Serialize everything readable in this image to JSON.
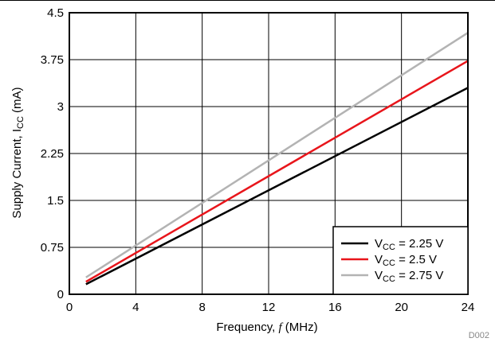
{
  "chart_data": {
    "type": "line",
    "title": "",
    "xlabel": {
      "prefix": "Frequency, ",
      "symbol": "f",
      "suffix": " (MHz)"
    },
    "ylabel": {
      "prefix": "Supply Current, I",
      "sub": "CC",
      "suffix": " (mA)"
    },
    "xlim": [
      0,
      24
    ],
    "ylim": [
      0,
      4.5
    ],
    "x_ticks": [
      0,
      4,
      8,
      12,
      16,
      20,
      24
    ],
    "x_tick_labels": [
      "0",
      "4",
      "8",
      "12",
      "16",
      "20",
      "24"
    ],
    "y_ticks": [
      0,
      0.75,
      1.5,
      2.25,
      3,
      3.75,
      4.5
    ],
    "y_tick_labels": [
      "0",
      "0.75",
      "1.5",
      "2.25",
      "3",
      "3.75",
      "4.5"
    ],
    "grid": true,
    "legend_position": "bottom-right",
    "series": [
      {
        "name": "V_CC = 2.25 V",
        "label_main": "V",
        "label_sub": "CC",
        "label_rest": " = 2.25 V",
        "color": "#000000",
        "x": [
          1,
          24
        ],
        "y": [
          0.16,
          3.3
        ]
      },
      {
        "name": "V_CC = 2.5 V",
        "label_main": "V",
        "label_sub": "CC",
        "label_rest": " = 2.5 V",
        "color": "#e8151b",
        "x": [
          1,
          24
        ],
        "y": [
          0.2,
          3.73
        ]
      },
      {
        "name": "V_CC = 2.75 V",
        "label_main": "V",
        "label_sub": "CC",
        "label_rest": " = 2.75 V",
        "color": "#b3b3b3",
        "x": [
          1,
          24
        ],
        "y": [
          0.27,
          4.18
        ]
      }
    ]
  },
  "footnote": "D002"
}
